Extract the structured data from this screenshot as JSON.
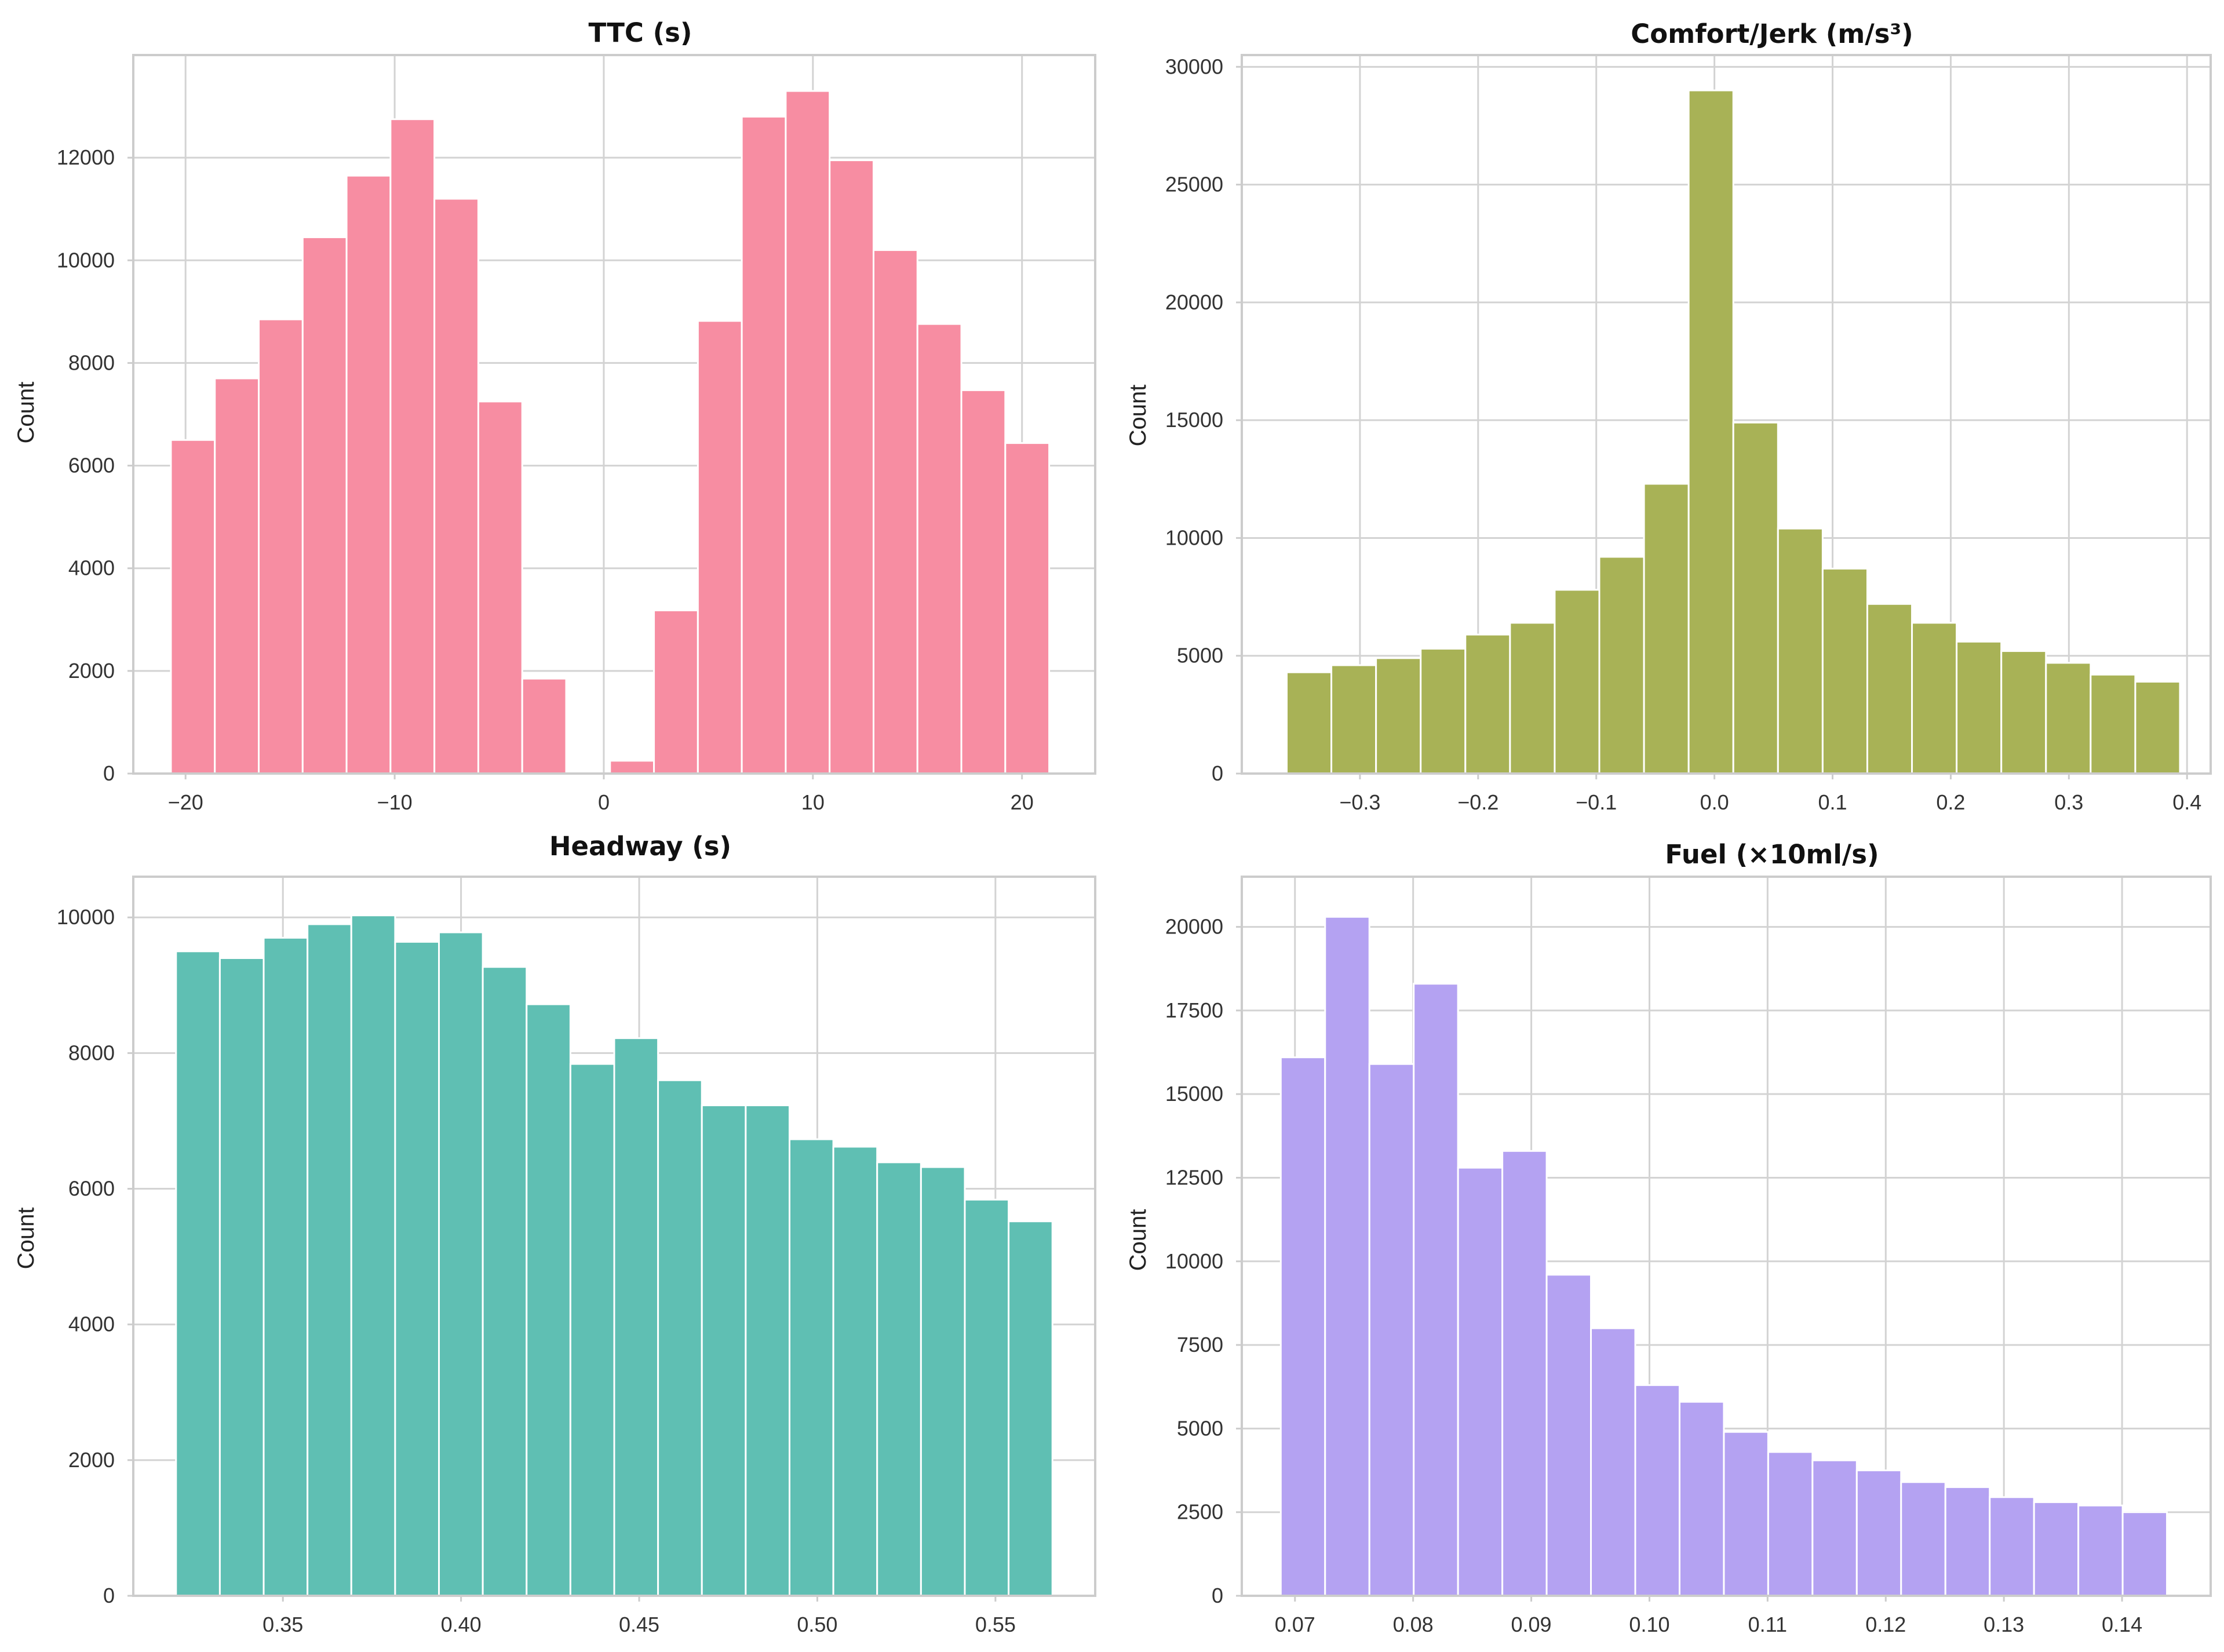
{
  "chart_data": [
    {
      "type": "bar",
      "title": "TTC (s)",
      "xlabel": "",
      "ylabel": "Count",
      "color": "#f78da2",
      "xlim": [
        -22.5,
        23.5
      ],
      "ylim": [
        0,
        14000
      ],
      "xticks": [
        -20,
        -10,
        0,
        10,
        20
      ],
      "xtick_labels": [
        "−20",
        "−10",
        "0",
        "10",
        "20"
      ],
      "yticks": [
        0,
        2000,
        4000,
        6000,
        8000,
        10000,
        12000
      ],
      "ytick_labels": [
        "0",
        "2000",
        "4000",
        "6000",
        "8000",
        "10000",
        "12000"
      ],
      "bins": {
        "edges": [
          -20.7,
          -18.6,
          -16.5,
          -14.4,
          -12.3,
          -10.2,
          -8.1,
          -6.0,
          -3.9,
          -1.8,
          0.3,
          2.4,
          4.5,
          6.6,
          8.7,
          10.8,
          12.9,
          15.0,
          17.1,
          19.2,
          21.3
        ],
        "counts": [
          6500,
          7700,
          8850,
          10450,
          11650,
          12750,
          11200,
          7250,
          1850,
          0,
          250,
          3180,
          8820,
          12800,
          13300,
          11950,
          10200,
          8760,
          7470,
          6440
        ]
      }
    },
    {
      "type": "bar",
      "title": "Comfort/Jerk (m/s³)",
      "xlabel": "",
      "ylabel": "Count",
      "color": "#a8b256",
      "xlim": [
        -0.4,
        0.42
      ],
      "ylim": [
        0,
        30500
      ],
      "xticks": [
        -0.3,
        -0.2,
        -0.1,
        0.0,
        0.1,
        0.2,
        0.3,
        0.4
      ],
      "xtick_labels": [
        "−0.3",
        "−0.2",
        "−0.1",
        "0.0",
        "0.1",
        "0.2",
        "0.3",
        "0.4"
      ],
      "yticks": [
        0,
        5000,
        10000,
        15000,
        20000,
        25000,
        30000
      ],
      "ytick_labels": [
        "0",
        "5000",
        "10000",
        "15000",
        "20000",
        "25000",
        "30000"
      ],
      "bins": {
        "edges": [
          -0.362,
          -0.3242,
          -0.2864,
          -0.2486,
          -0.2108,
          -0.173,
          -0.1352,
          -0.0974,
          -0.0596,
          -0.0218,
          0.016,
          0.0538,
          0.0916,
          0.1294,
          0.1672,
          0.205,
          0.2428,
          0.2806,
          0.3184,
          0.3562,
          0.394
        ],
        "counts": [
          4300,
          4600,
          4900,
          5300,
          5900,
          6400,
          7800,
          9200,
          12300,
          29000,
          14900,
          10400,
          8700,
          7200,
          6400,
          5600,
          5200,
          4700,
          4200,
          3900
        ]
      }
    },
    {
      "type": "bar",
      "title": "Headway (s)",
      "xlabel": "",
      "ylabel": "Count",
      "color": "#5fbfb3",
      "xlim": [
        0.308,
        0.578
      ],
      "ylim": [
        0,
        10600
      ],
      "xticks": [
        0.35,
        0.4,
        0.45,
        0.5,
        0.55
      ],
      "xtick_labels": [
        "0.35",
        "0.40",
        "0.45",
        "0.50",
        "0.55"
      ],
      "yticks": [
        0,
        2000,
        4000,
        6000,
        8000,
        10000
      ],
      "ytick_labels": [
        "0",
        "2000",
        "4000",
        "6000",
        "8000",
        "10000"
      ],
      "bins": {
        "edges": [
          0.32,
          0.3323,
          0.3446,
          0.3569,
          0.3692,
          0.3815,
          0.3938,
          0.4061,
          0.4184,
          0.4307,
          0.443,
          0.4553,
          0.4676,
          0.4799,
          0.4922,
          0.5045,
          0.5168,
          0.5291,
          0.5414,
          0.5537,
          0.566
        ],
        "counts": [
          9500,
          9400,
          9700,
          9900,
          10030,
          9640,
          9780,
          9270,
          8720,
          7840,
          8220,
          7600,
          7230,
          7230,
          6730,
          6620,
          6390,
          6320,
          5840,
          5520
        ]
      }
    },
    {
      "type": "bar",
      "title": "Fuel (×10ml/s)",
      "xlabel": "",
      "ylabel": "Count",
      "color": "#b4a2f2",
      "xlim": [
        0.0655,
        0.1475
      ],
      "ylim": [
        0,
        21500
      ],
      "xticks": [
        0.07,
        0.08,
        0.09,
        0.1,
        0.11,
        0.12,
        0.13,
        0.14
      ],
      "xtick_labels": [
        "0.07",
        "0.08",
        "0.09",
        "0.10",
        "0.11",
        "0.12",
        "0.13",
        "0.14"
      ],
      "yticks": [
        0,
        2500,
        5000,
        7500,
        10000,
        12500,
        15000,
        17500,
        20000
      ],
      "ytick_labels": [
        "0",
        "2500",
        "5000",
        "7500",
        "10000",
        "12500",
        "15000",
        "17500",
        "20000"
      ],
      "bins": {
        "edges": [
          0.0688,
          0.07255,
          0.0763,
          0.08005,
          0.0838,
          0.08755,
          0.0913,
          0.09505,
          0.0988,
          0.10255,
          0.1063,
          0.11005,
          0.1138,
          0.11755,
          0.1213,
          0.12505,
          0.1288,
          0.13255,
          0.1363,
          0.14005,
          0.1438
        ],
        "counts": [
          16100,
          20300,
          15900,
          18300,
          12800,
          13300,
          9600,
          8000,
          6300,
          5800,
          4900,
          4300,
          4050,
          3750,
          3400,
          3250,
          2950,
          2800,
          2700,
          2500
        ]
      }
    }
  ]
}
